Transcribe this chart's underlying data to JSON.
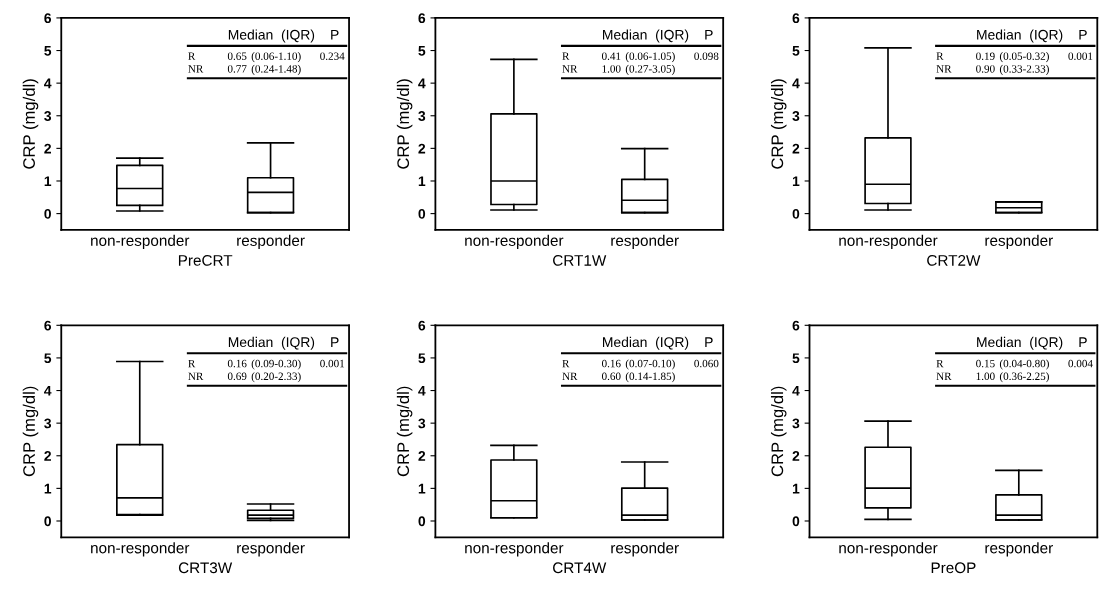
{
  "chart_data": [
    {
      "type": "box",
      "categories": [
        "non-responder",
        "responder"
      ],
      "xlabel": "PreCRT",
      "ylabel": "CRP (mg/dl)",
      "ylim": [
        -0.5,
        6
      ],
      "yticks": [
        0,
        1,
        2,
        3,
        4,
        5,
        6
      ],
      "boxes": [
        {
          "low": 0.08,
          "q1": 0.25,
          "median": 0.77,
          "q3": 1.48,
          "high": 1.7
        },
        {
          "low": 0.03,
          "q1": 0.03,
          "median": 0.65,
          "q3": 1.1,
          "high": 2.17
        }
      ],
      "annotations": [
        "Median  (IQR)",
        "P",
        "R",
        "0.65",
        "(0.06-1.10)",
        "0.234",
        "NR",
        "0.77",
        "(0.24-1.48)"
      ]
    },
    {
      "type": "box",
      "categories": [
        "non-responder",
        "responder"
      ],
      "xlabel": "CRT1W",
      "ylabel": "CRP (mg/dl)",
      "ylim": [
        -0.5,
        6
      ],
      "yticks": [
        0,
        1,
        2,
        3,
        4,
        5,
        6
      ],
      "boxes": [
        {
          "low": 0.11,
          "q1": 0.28,
          "median": 1.0,
          "q3": 3.06,
          "high": 4.73
        },
        {
          "low": 0.03,
          "q1": 0.03,
          "median": 0.41,
          "q3": 1.05,
          "high": 1.99
        }
      ],
      "annotations": [
        "Median  (IQR)",
        "P",
        "R",
        "0.41",
        "(0.06-1.05)",
        "0.098",
        "NR",
        "1.00",
        "(0.27-3.05)"
      ]
    },
    {
      "type": "box",
      "categories": [
        "non-responder",
        "responder"
      ],
      "xlabel": "CRT2W",
      "ylabel": "CRP (mg/dl)",
      "ylim": [
        -0.5,
        6
      ],
      "yticks": [
        0,
        1,
        2,
        3,
        4,
        5,
        6
      ],
      "boxes": [
        {
          "low": 0.11,
          "q1": 0.31,
          "median": 0.9,
          "q3": 2.32,
          "high": 5.08
        },
        {
          "low": 0.03,
          "q1": 0.03,
          "median": 0.18,
          "q3": 0.36,
          "high": 0.36
        }
      ],
      "annotations": [
        "Median  (IQR)",
        "P",
        "R",
        "0.19",
        "(0.05-0.32)",
        "0.001",
        "NR",
        "0.90",
        "(0.33-2.33)"
      ]
    },
    {
      "type": "box",
      "categories": [
        "non-responder",
        "responder"
      ],
      "xlabel": "CRT3W",
      "ylabel": "CRP (mg/dl)",
      "ylim": [
        -0.5,
        6
      ],
      "yticks": [
        0,
        1,
        2,
        3,
        4,
        5,
        6
      ],
      "boxes": [
        {
          "low": 0.18,
          "q1": 0.2,
          "median": 0.71,
          "q3": 2.34,
          "high": 4.89
        },
        {
          "low": 0.02,
          "q1": 0.08,
          "median": 0.18,
          "q3": 0.33,
          "high": 0.52
        }
      ],
      "annotations": [
        "Median  (IQR)",
        "P",
        "R",
        "0.16",
        "(0.09-0.30)",
        "0.001",
        "NR",
        "0.69",
        "(0.20-2.33)"
      ]
    },
    {
      "type": "box",
      "categories": [
        "non-responder",
        "responder"
      ],
      "xlabel": "CRT4W",
      "ylabel": "CRP (mg/dl)",
      "ylim": [
        -0.5,
        6
      ],
      "yticks": [
        0,
        1,
        2,
        3,
        4,
        5,
        6
      ],
      "boxes": [
        {
          "low": 0.1,
          "q1": 0.1,
          "median": 0.62,
          "q3": 1.87,
          "high": 2.32
        },
        {
          "low": 0.03,
          "q1": 0.03,
          "median": 0.18,
          "q3": 1.01,
          "high": 1.81
        }
      ],
      "annotations": [
        "Median  (IQR)",
        "P",
        "R",
        "0.16",
        "(0.07-0.10)",
        "0.060",
        "NR",
        "0.60",
        "(0.14-1.85)"
      ]
    },
    {
      "type": "box",
      "categories": [
        "non-responder",
        "responder"
      ],
      "xlabel": "PreOP",
      "ylabel": "CRP (mg/dl)",
      "ylim": [
        -0.5,
        6
      ],
      "yticks": [
        0,
        1,
        2,
        3,
        4,
        5,
        6
      ],
      "boxes": [
        {
          "low": 0.05,
          "q1": 0.4,
          "median": 1.01,
          "q3": 2.26,
          "high": 3.06
        },
        {
          "low": 0.03,
          "q1": 0.03,
          "median": 0.18,
          "q3": 0.8,
          "high": 1.55
        }
      ],
      "annotations": [
        "Median  (IQR)",
        "P",
        "R",
        "0.15",
        "(0.04-0.80)",
        "0.004",
        "NR",
        "1.00",
        "(0.36-2.25)"
      ]
    }
  ]
}
